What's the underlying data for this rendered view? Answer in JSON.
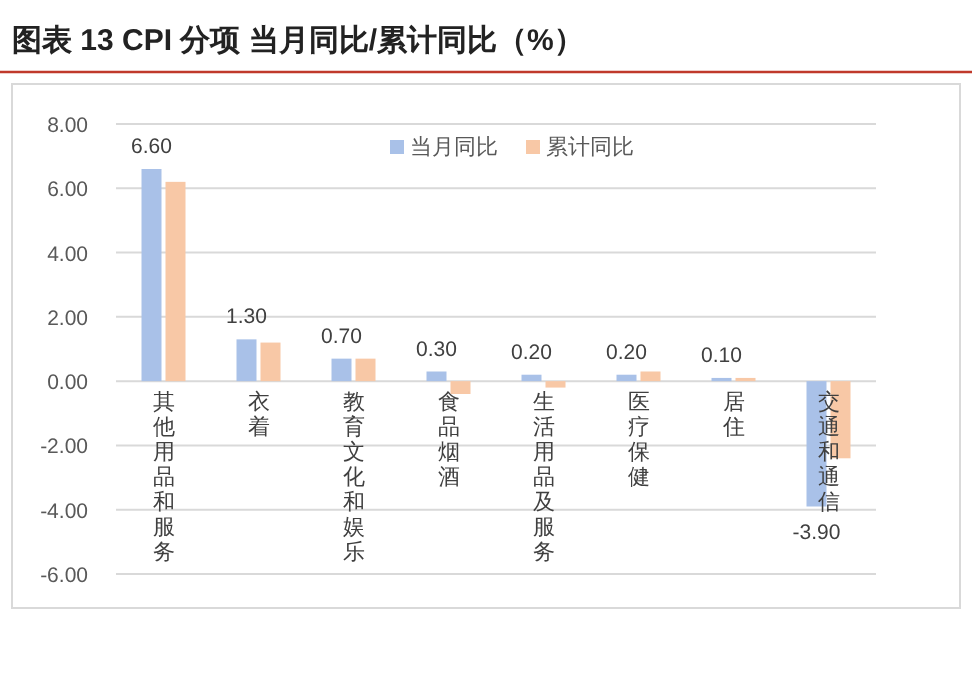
{
  "chart_data": {
    "type": "bar",
    "title": "图表 13  CPI 分项 当月同比/累计同比（%）",
    "categories": [
      "其他用品和服务",
      "衣着",
      "教育文化和娱乐",
      "食品烟酒",
      "生活用品及服务",
      "医疗保健",
      "居住",
      "交通和通信"
    ],
    "series": [
      {
        "name": "当月同比",
        "color": "#a9c1e8",
        "values": [
          6.6,
          1.3,
          0.7,
          0.3,
          0.2,
          0.2,
          0.1,
          -3.9
        ],
        "value_labels": [
          "6.60",
          "1.30",
          "0.70",
          "0.30",
          "0.20",
          "0.20",
          "0.10",
          "-3.90"
        ]
      },
      {
        "name": "累计同比",
        "color": "#f8c8a6",
        "values": [
          6.2,
          1.2,
          0.7,
          -0.4,
          -0.2,
          0.3,
          0.1,
          -2.4
        ]
      }
    ],
    "ylim": [
      -6,
      8
    ],
    "yticks": [
      {
        "value": -6,
        "label": "-6.00"
      },
      {
        "value": -4,
        "label": "-4.00"
      },
      {
        "value": -2,
        "label": "-2.00"
      },
      {
        "value": 0,
        "label": "0.00"
      },
      {
        "value": 2,
        "label": "2.00"
      },
      {
        "value": 4,
        "label": "4.00"
      },
      {
        "value": 6,
        "label": "6.00"
      },
      {
        "value": 8,
        "label": "8.00"
      }
    ],
    "grid": "y",
    "legend": "top"
  }
}
